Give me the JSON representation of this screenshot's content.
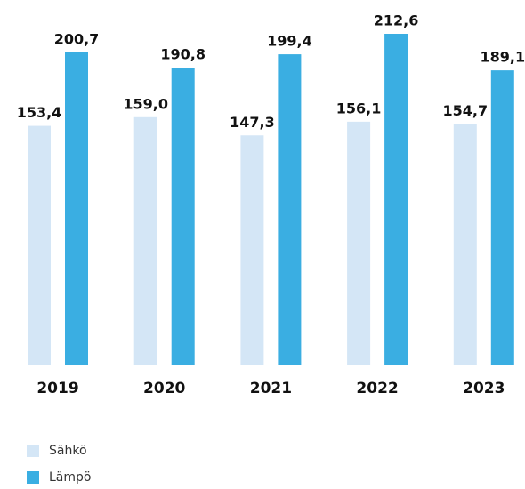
{
  "chart_data": {
    "type": "bar",
    "categories": [
      "2019",
      "2020",
      "2021",
      "2022",
      "2023"
    ],
    "series": [
      {
        "name": "Sähkö",
        "color": "#d4e6f6",
        "values": [
          153.4,
          159.0,
          147.3,
          156.1,
          154.7
        ],
        "value_labels": [
          "153,4",
          "159,0",
          "147,3",
          "156,1",
          "154,7"
        ]
      },
      {
        "name": "Lämpö",
        "color": "#3aaee2",
        "values": [
          200.7,
          190.8,
          199.4,
          212.6,
          189.1
        ],
        "value_labels": [
          "200,7",
          "190,8",
          "199,4",
          "212,6",
          "189,1"
        ]
      }
    ],
    "legend": "bottom-left"
  }
}
